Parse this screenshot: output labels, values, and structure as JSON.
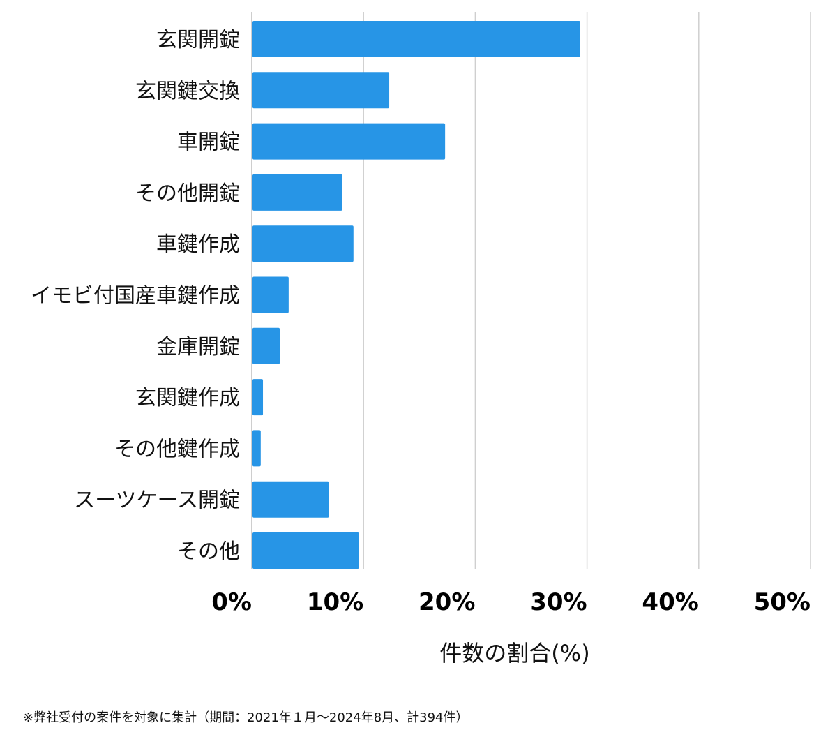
{
  "chart_data": {
    "type": "bar",
    "orientation": "horizontal",
    "categories": [
      "玄関開錠",
      "玄関鍵交換",
      "車開錠",
      "その他開錠",
      "車鍵作成",
      "イモビ付国産車鍵作成",
      "金庫開錠",
      "玄関鍵作成",
      "その他鍵作成",
      "スーツケース開錠",
      "その他"
    ],
    "values": [
      29.4,
      12.3,
      17.3,
      8.1,
      9.1,
      3.3,
      2.5,
      1.0,
      0.8,
      6.9,
      9.6
    ],
    "xlabel": "件数の割合(%)",
    "ylabel": "",
    "xlim": [
      0,
      50
    ],
    "ticks": [
      0,
      10,
      20,
      30,
      40,
      50
    ],
    "tick_labels": [
      "0%",
      "10%",
      "20%",
      "30%",
      "40%",
      "50%"
    ],
    "grid": true,
    "bar_color": "#2795e6"
  },
  "footnote": "※弊社受付の案件を対象に集計（期間：2021年１月〜2024年8月、計394件）"
}
